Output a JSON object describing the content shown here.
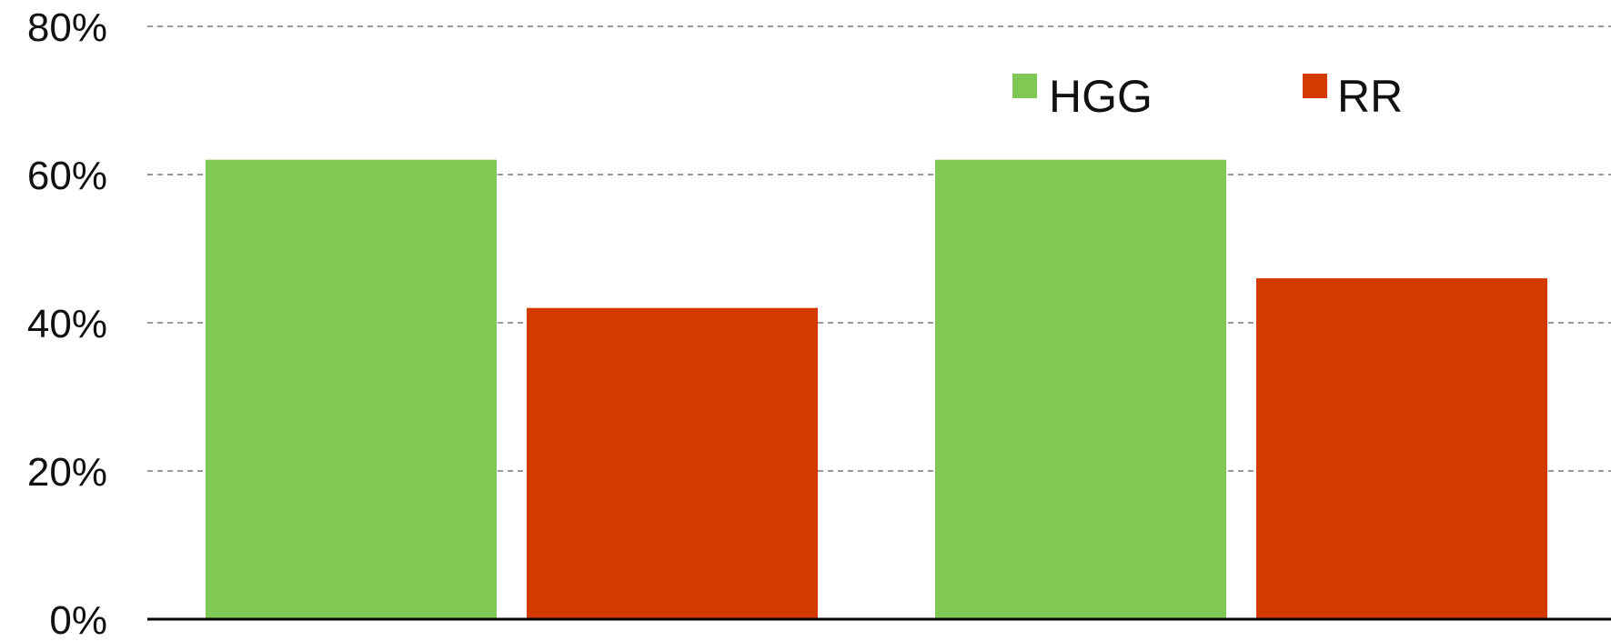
{
  "chart_data": {
    "type": "bar",
    "title": "",
    "xlabel": "",
    "ylabel": "",
    "categories": [
      "",
      ""
    ],
    "series": [
      {
        "name": "HGG",
        "values": [
          62,
          62
        ],
        "color": "#80c854"
      },
      {
        "name": "RR",
        "values": [
          42,
          46
        ],
        "color": "#d43a00"
      }
    ],
    "ylim": [
      0,
      80
    ],
    "y_ticks": [
      {
        "value": 0,
        "label": "0%"
      },
      {
        "value": 20,
        "label": "20%"
      },
      {
        "value": 40,
        "label": "40%"
      },
      {
        "value": 60,
        "label": "60%"
      },
      {
        "value": 80,
        "label": "80%"
      }
    ],
    "grid": true,
    "legend_position": "top-right",
    "gridline_color": "#9a9a9a",
    "axis_color": "#000000"
  }
}
